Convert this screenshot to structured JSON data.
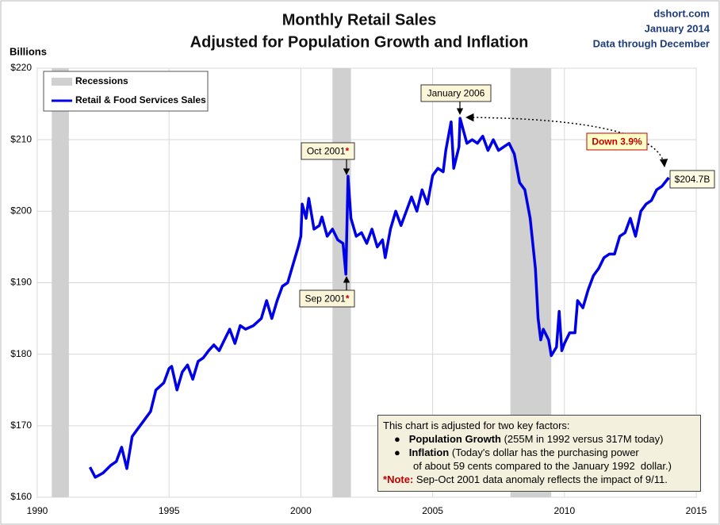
{
  "chart_data": {
    "type": "line",
    "title": "Monthly Retail Sales",
    "subtitle": "Adjusted for Population Growth and Inflation",
    "source": "dshort.com",
    "date": "January 2014",
    "data_note": "Data through December",
    "y_label": "Billions",
    "xlim": [
      1990,
      2015
    ],
    "ylim": [
      160,
      220
    ],
    "xticks": [
      1990,
      1995,
      2000,
      2005,
      2010,
      2015
    ],
    "yticks": [
      {
        "value": 160,
        "label": "$160"
      },
      {
        "value": 170,
        "label": "$170"
      },
      {
        "value": 180,
        "label": "$180"
      },
      {
        "value": 190,
        "label": "$190"
      },
      {
        "value": 200,
        "label": "$200"
      },
      {
        "value": 210,
        "label": "$210"
      },
      {
        "value": 220,
        "label": "$220"
      }
    ],
    "grid": true,
    "legend": "top-left",
    "recessions": {
      "name": "Recessions",
      "color": "#d0d0d0",
      "periods": [
        [
          1990.55,
          1991.2
        ],
        [
          2001.2,
          2001.9
        ],
        [
          2007.95,
          2009.5
        ]
      ]
    },
    "series": [
      {
        "name": "Retail & Food Services Sales",
        "color": "#0000e6",
        "x": [
          1992.0,
          1992.2,
          1992.5,
          1992.8,
          1993.0,
          1993.2,
          1993.4,
          1993.6,
          1993.8,
          1994.0,
          1994.3,
          1994.5,
          1994.8,
          1995.0,
          1995.1,
          1995.3,
          1995.5,
          1995.7,
          1995.9,
          1996.1,
          1996.3,
          1996.5,
          1996.7,
          1996.9,
          1997.1,
          1997.3,
          1997.5,
          1997.7,
          1997.9,
          1998.2,
          1998.5,
          1998.7,
          1998.9,
          1999.1,
          1999.3,
          1999.5,
          1999.7,
          1999.9,
          2000.0,
          2000.05,
          2000.2,
          2000.3,
          2000.5,
          2000.7,
          2000.8,
          2001.0,
          2001.2,
          2001.4,
          2001.6,
          2001.71,
          2001.79,
          2001.9,
          2002.1,
          2002.3,
          2002.5,
          2002.7,
          2002.9,
          2003.1,
          2003.2,
          2003.4,
          2003.6,
          2003.8,
          2004.0,
          2004.2,
          2004.4,
          2004.6,
          2004.8,
          2005.0,
          2005.2,
          2005.4,
          2005.5,
          2005.7,
          2005.8,
          2006.0,
          2006.04,
          2006.3,
          2006.5,
          2006.7,
          2006.9,
          2007.1,
          2007.3,
          2007.5,
          2007.7,
          2007.9,
          2008.1,
          2008.3,
          2008.5,
          2008.7,
          2008.9,
          2009.0,
          2009.1,
          2009.2,
          2009.4,
          2009.5,
          2009.7,
          2009.8,
          2009.9,
          2010.0,
          2010.2,
          2010.4,
          2010.5,
          2010.7,
          2010.9,
          2011.1,
          2011.3,
          2011.5,
          2011.7,
          2011.9,
          2012.1,
          2012.3,
          2012.5,
          2012.7,
          2012.9,
          2013.1,
          2013.3,
          2013.5,
          2013.7,
          2013.96
        ],
        "values": [
          164.2,
          162.8,
          163.4,
          164.5,
          165,
          167,
          164,
          168.5,
          169.5,
          170.5,
          172,
          175,
          176,
          178,
          178.3,
          175,
          177.5,
          178.5,
          176.5,
          179,
          179.5,
          180.5,
          181.3,
          180.5,
          182,
          183.5,
          181.5,
          184,
          183.5,
          184,
          185,
          187.5,
          185,
          187.5,
          189.5,
          190,
          192.5,
          195,
          196.5,
          201,
          199,
          201.8,
          197.5,
          198,
          199.2,
          196.5,
          197.5,
          196,
          195.5,
          191.2,
          204.9,
          199,
          196.5,
          197,
          195.5,
          197.5,
          195,
          196,
          193.5,
          197.5,
          200,
          198,
          200,
          202,
          200,
          203,
          201,
          205,
          206,
          205.5,
          208.5,
          212.5,
          206,
          209,
          213,
          209.5,
          210,
          209.5,
          210.5,
          208.5,
          210,
          208.5,
          209,
          209.5,
          208,
          204,
          203,
          199,
          192,
          185,
          182,
          183.5,
          182,
          179.8,
          181,
          186,
          180.5,
          181.5,
          183,
          183,
          187.5,
          186.5,
          189,
          191,
          192,
          193.5,
          194,
          194,
          196.5,
          197,
          199,
          196.5,
          200,
          201,
          201.5,
          203,
          203.5,
          204.7
        ]
      }
    ],
    "annotations": [
      {
        "text": "January 2006"
      },
      {
        "text": "Oct 2001",
        "mark": "*"
      },
      {
        "text": "Sep 2001",
        "mark": "*"
      },
      {
        "text": "Down 3.9%"
      },
      {
        "text": "$204.7B"
      }
    ],
    "note": {
      "intro": "This chart is adjusted for two key factors:",
      "items": [
        {
          "bullet": "●",
          "bold": "Population Growth",
          "text": " (255M in 1992 versus 317M today)"
        },
        {
          "bullet": "●",
          "bold": "Inflation",
          "text": " (Today's dollar has the purchasing power",
          "cont": "of about 59 cents compared to the January 1992  dollar.)"
        }
      ],
      "footnote": {
        "mark": "*",
        "bold": "Note:",
        "text": " Sep-Oct 2001 data anomaly reflects the impact of 9/11."
      }
    }
  }
}
